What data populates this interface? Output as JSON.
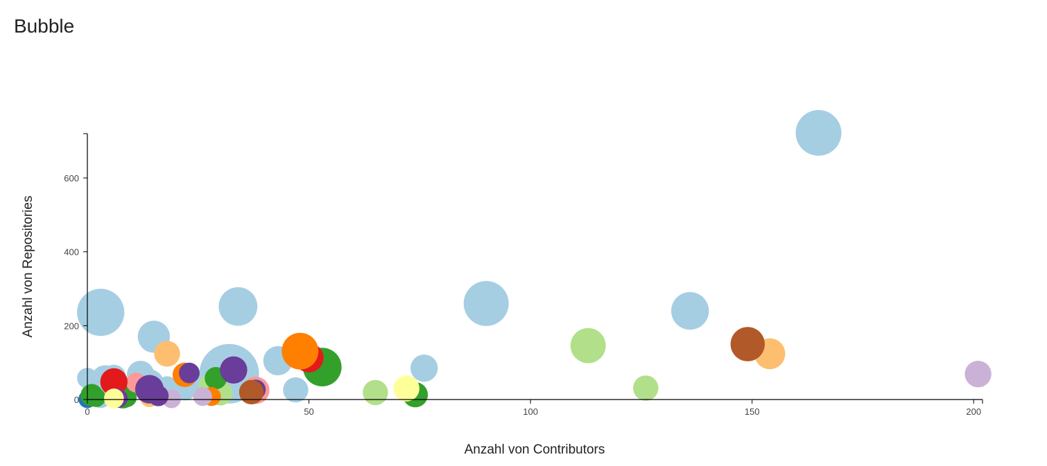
{
  "page": {
    "title": "Bubble"
  },
  "chart_data": {
    "type": "scatter",
    "title": "Bubble",
    "xlabel": "Anzahl von Contributors",
    "ylabel": "Anzahl von Repositories",
    "xlim": [
      0,
      202
    ],
    "ylim": [
      0,
      720
    ],
    "xticks": [
      0,
      50,
      100,
      150,
      200
    ],
    "yticks": [
      0,
      200,
      400,
      600
    ],
    "grid": false,
    "legend": "none",
    "palette": {
      "light_blue": "#a6cee3",
      "blue": "#1f78b4",
      "light_green": "#b2df8a",
      "green": "#33a02c",
      "pink": "#fb9a99",
      "red": "#e31a1c",
      "light_orange": "#fdbf6f",
      "orange": "#ff7f00",
      "light_purple": "#cab2d6",
      "purple": "#6a3d9a",
      "yellow": "#ffff99",
      "brown": "#b15928"
    },
    "points": [
      {
        "x": 32,
        "y": 70,
        "size": 100,
        "color": "#a6cee3"
      },
      {
        "x": 165,
        "y": 722,
        "size": 59,
        "color": "#a6cee3"
      },
      {
        "x": 3,
        "y": 236,
        "size": 63,
        "color": "#a6cee3"
      },
      {
        "x": 90,
        "y": 260,
        "size": 57,
        "color": "#a6cee3"
      },
      {
        "x": 34,
        "y": 252,
        "size": 42,
        "color": "#a6cee3"
      },
      {
        "x": 136,
        "y": 240,
        "size": 40,
        "color": "#a6cee3"
      },
      {
        "x": 15,
        "y": 170,
        "size": 29,
        "color": "#a6cee3"
      },
      {
        "x": 43,
        "y": 105,
        "size": 24,
        "color": "#a6cee3"
      },
      {
        "x": 76,
        "y": 85,
        "size": 21,
        "color": "#a6cee3"
      },
      {
        "x": 4,
        "y": 55,
        "size": 22,
        "color": "#a6cee3"
      },
      {
        "x": 12,
        "y": 68,
        "size": 21,
        "color": "#a6cee3"
      },
      {
        "x": 14,
        "y": 42,
        "size": 24,
        "color": "#a6cee3"
      },
      {
        "x": 6,
        "y": 62,
        "size": 16,
        "color": "#a6cee3"
      },
      {
        "x": 22,
        "y": 30,
        "size": 16,
        "color": "#a6cee3"
      },
      {
        "x": 47,
        "y": 26,
        "size": 18,
        "color": "#a6cee3"
      },
      {
        "x": 27,
        "y": 38,
        "size": 20,
        "color": "#a6cee3"
      },
      {
        "x": 0,
        "y": 58,
        "size": 12,
        "color": "#a6cee3"
      },
      {
        "x": 18,
        "y": 35,
        "size": 12,
        "color": "#a6cee3"
      },
      {
        "x": 55,
        "y": 82,
        "size": 12,
        "color": "#a6cee3"
      },
      {
        "x": 10,
        "y": 35,
        "size": 12,
        "color": "#a6cee3"
      },
      {
        "x": 3,
        "y": 5,
        "size": 12,
        "color": "#a6cee3"
      },
      {
        "x": 5,
        "y": 10,
        "size": 10,
        "color": "#a6cee3"
      },
      {
        "x": 0,
        "y": 1,
        "size": 9,
        "color": "#1f78b4"
      },
      {
        "x": 113,
        "y": 146,
        "size": 35,
        "color": "#b2df8a"
      },
      {
        "x": 126,
        "y": 31,
        "size": 18,
        "color": "#b2df8a"
      },
      {
        "x": 65,
        "y": 19,
        "size": 18,
        "color": "#b2df8a"
      },
      {
        "x": 28,
        "y": 36,
        "size": 19,
        "color": "#b2df8a"
      },
      {
        "x": 30,
        "y": 17,
        "size": 17,
        "color": "#b2df8a"
      },
      {
        "x": 6,
        "y": 30,
        "size": 12,
        "color": "#b2df8a"
      },
      {
        "x": 53,
        "y": 88,
        "size": 42,
        "color": "#33a02c"
      },
      {
        "x": 74,
        "y": 13,
        "size": 18,
        "color": "#33a02c"
      },
      {
        "x": 29,
        "y": 58,
        "size": 14,
        "color": "#33a02c"
      },
      {
        "x": 8,
        "y": 10,
        "size": 18,
        "color": "#33a02c"
      },
      {
        "x": 1,
        "y": 12,
        "size": 14,
        "color": "#33a02c"
      },
      {
        "x": 2,
        "y": 5,
        "size": 10,
        "color": "#33a02c"
      },
      {
        "x": 9,
        "y": 5,
        "size": 10,
        "color": "#33a02c"
      },
      {
        "x": 38,
        "y": 25,
        "size": 21,
        "color": "#fb9a99"
      },
      {
        "x": 11,
        "y": 46,
        "size": 11,
        "color": "#fb9a99"
      },
      {
        "x": 50,
        "y": 113,
        "size": 24,
        "color": "#e31a1c"
      },
      {
        "x": 6,
        "y": 48,
        "size": 21,
        "color": "#e31a1c"
      },
      {
        "x": 154,
        "y": 124,
        "size": 27,
        "color": "#fdbf6f"
      },
      {
        "x": 18,
        "y": 124,
        "size": 19,
        "color": "#fdbf6f"
      },
      {
        "x": 14,
        "y": 5,
        "size": 10,
        "color": "#fdbf6f"
      },
      {
        "x": 48,
        "y": 131,
        "size": 38,
        "color": "#ff7f00"
      },
      {
        "x": 22,
        "y": 67,
        "size": 17,
        "color": "#ff7f00"
      },
      {
        "x": 28,
        "y": 8,
        "size": 10,
        "color": "#ff7f00"
      },
      {
        "x": 201,
        "y": 69,
        "size": 20,
        "color": "#cab2d6"
      },
      {
        "x": 19,
        "y": 2,
        "size": 10,
        "color": "#cab2d6"
      },
      {
        "x": 26,
        "y": 8,
        "size": 10,
        "color": "#cab2d6"
      },
      {
        "x": 33,
        "y": 80,
        "size": 21,
        "color": "#6a3d9a"
      },
      {
        "x": 14,
        "y": 28,
        "size": 23,
        "color": "#6a3d9a"
      },
      {
        "x": 23,
        "y": 72,
        "size": 12,
        "color": "#6a3d9a"
      },
      {
        "x": 16,
        "y": 10,
        "size": 12,
        "color": "#6a3d9a"
      },
      {
        "x": 38,
        "y": 27,
        "size": 11,
        "color": "#6a3d9a"
      },
      {
        "x": 7,
        "y": 3,
        "size": 10,
        "color": "#6a3d9a"
      },
      {
        "x": 72,
        "y": 30,
        "size": 19,
        "color": "#ffff99"
      },
      {
        "x": 6,
        "y": 3,
        "size": 11,
        "color": "#ffff99"
      },
      {
        "x": 149,
        "y": 150,
        "size": 33,
        "color": "#b15928"
      },
      {
        "x": 37,
        "y": 20,
        "size": 17,
        "color": "#b15928"
      }
    ]
  }
}
